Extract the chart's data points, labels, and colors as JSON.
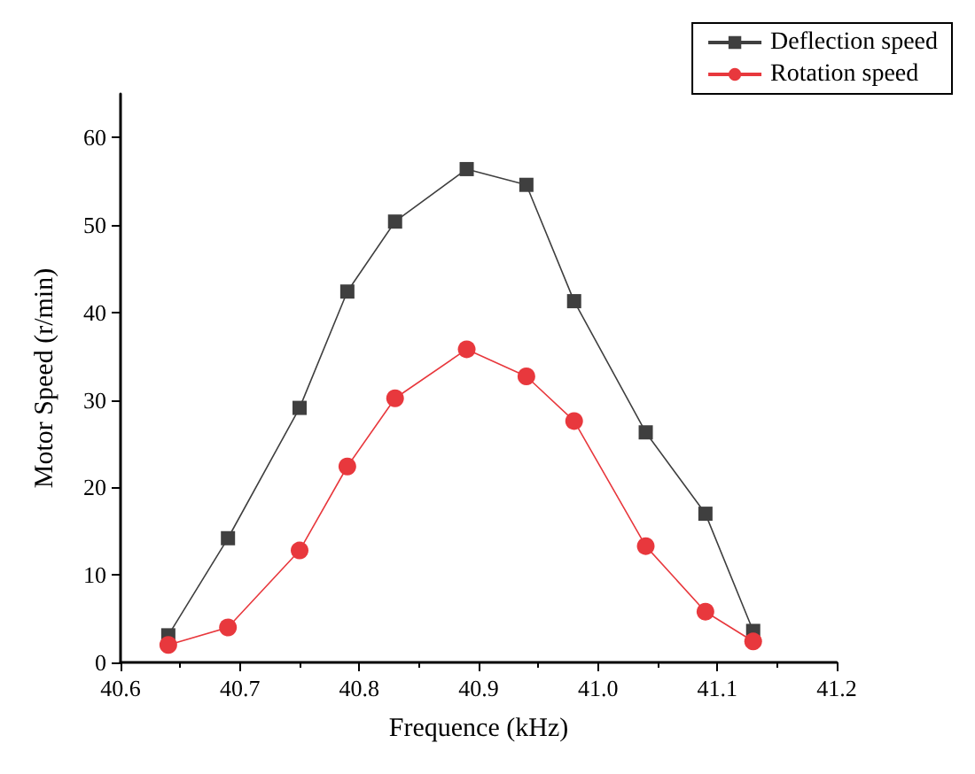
{
  "chart_data": {
    "type": "line",
    "xlabel": "Frequence (kHz)",
    "ylabel": "Motor Speed (r/min)",
    "x": [
      40.64,
      40.69,
      40.75,
      40.79,
      40.83,
      40.89,
      40.94,
      40.98,
      41.04,
      41.09,
      41.13
    ],
    "series": [
      {
        "name": "Deflection speed",
        "color": "#3f3f3f",
        "marker": "square",
        "values": [
          3.1,
          14.2,
          29.1,
          42.4,
          50.4,
          56.4,
          54.6,
          41.3,
          26.3,
          17.0,
          3.6
        ]
      },
      {
        "name": "Rotation speed",
        "color": "#e8383d",
        "marker": "circle",
        "values": [
          2.0,
          4.0,
          12.8,
          22.4,
          30.2,
          35.8,
          32.7,
          27.6,
          13.3,
          5.8,
          2.4
        ]
      }
    ],
    "xlim": [
      40.6,
      41.2
    ],
    "xticks": [
      40.6,
      40.7,
      40.8,
      40.9,
      {
        "value": 41,
        "label": "41.0"
      },
      41.1,
      41.2
    ],
    "ylim": [
      0,
      65
    ],
    "yticks": [
      0,
      10,
      20,
      30,
      40,
      50,
      60
    ],
    "grid": false,
    "legend": "top right",
    "line_style": "solid"
  }
}
